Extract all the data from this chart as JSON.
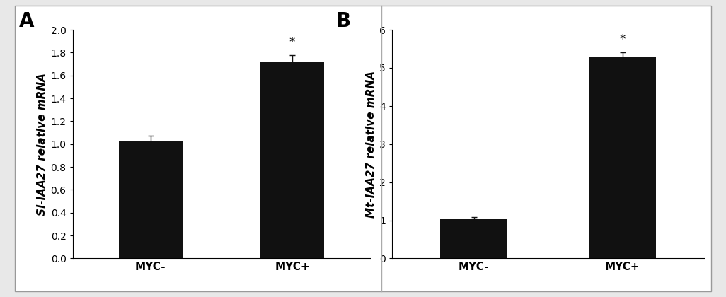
{
  "panel_A": {
    "label": "A",
    "categories": [
      "MYC-",
      "MYC+"
    ],
    "values": [
      1.03,
      1.72
    ],
    "errors": [
      0.04,
      0.055
    ],
    "ylabel": "Sl-IAA27 relative mRNA",
    "ylim": [
      0,
      2.0
    ],
    "yticks": [
      0,
      0.2,
      0.4,
      0.6,
      0.8,
      1.0,
      1.2,
      1.4,
      1.6,
      1.8,
      2.0
    ],
    "significance": [
      false,
      true
    ],
    "bar_color": "#111111",
    "error_color": "#111111"
  },
  "panel_B": {
    "label": "B",
    "categories": [
      "MYC-",
      "MYC+"
    ],
    "values": [
      1.03,
      5.27
    ],
    "errors": [
      0.06,
      0.13
    ],
    "ylabel": "Mt-IAA27 relative mRNA",
    "ylim": [
      0,
      6.0
    ],
    "yticks": [
      0,
      1,
      2,
      3,
      4,
      5,
      6
    ],
    "significance": [
      false,
      true
    ],
    "bar_color": "#111111",
    "error_color": "#111111"
  },
  "figure_bg": "#e8e8e8",
  "panel_bg": "#ffffff",
  "bar_width": 0.45,
  "label_fontsize": 20,
  "tick_fontsize": 10,
  "ylabel_fontsize": 11,
  "xtick_fontsize": 11,
  "star_fontsize": 12
}
